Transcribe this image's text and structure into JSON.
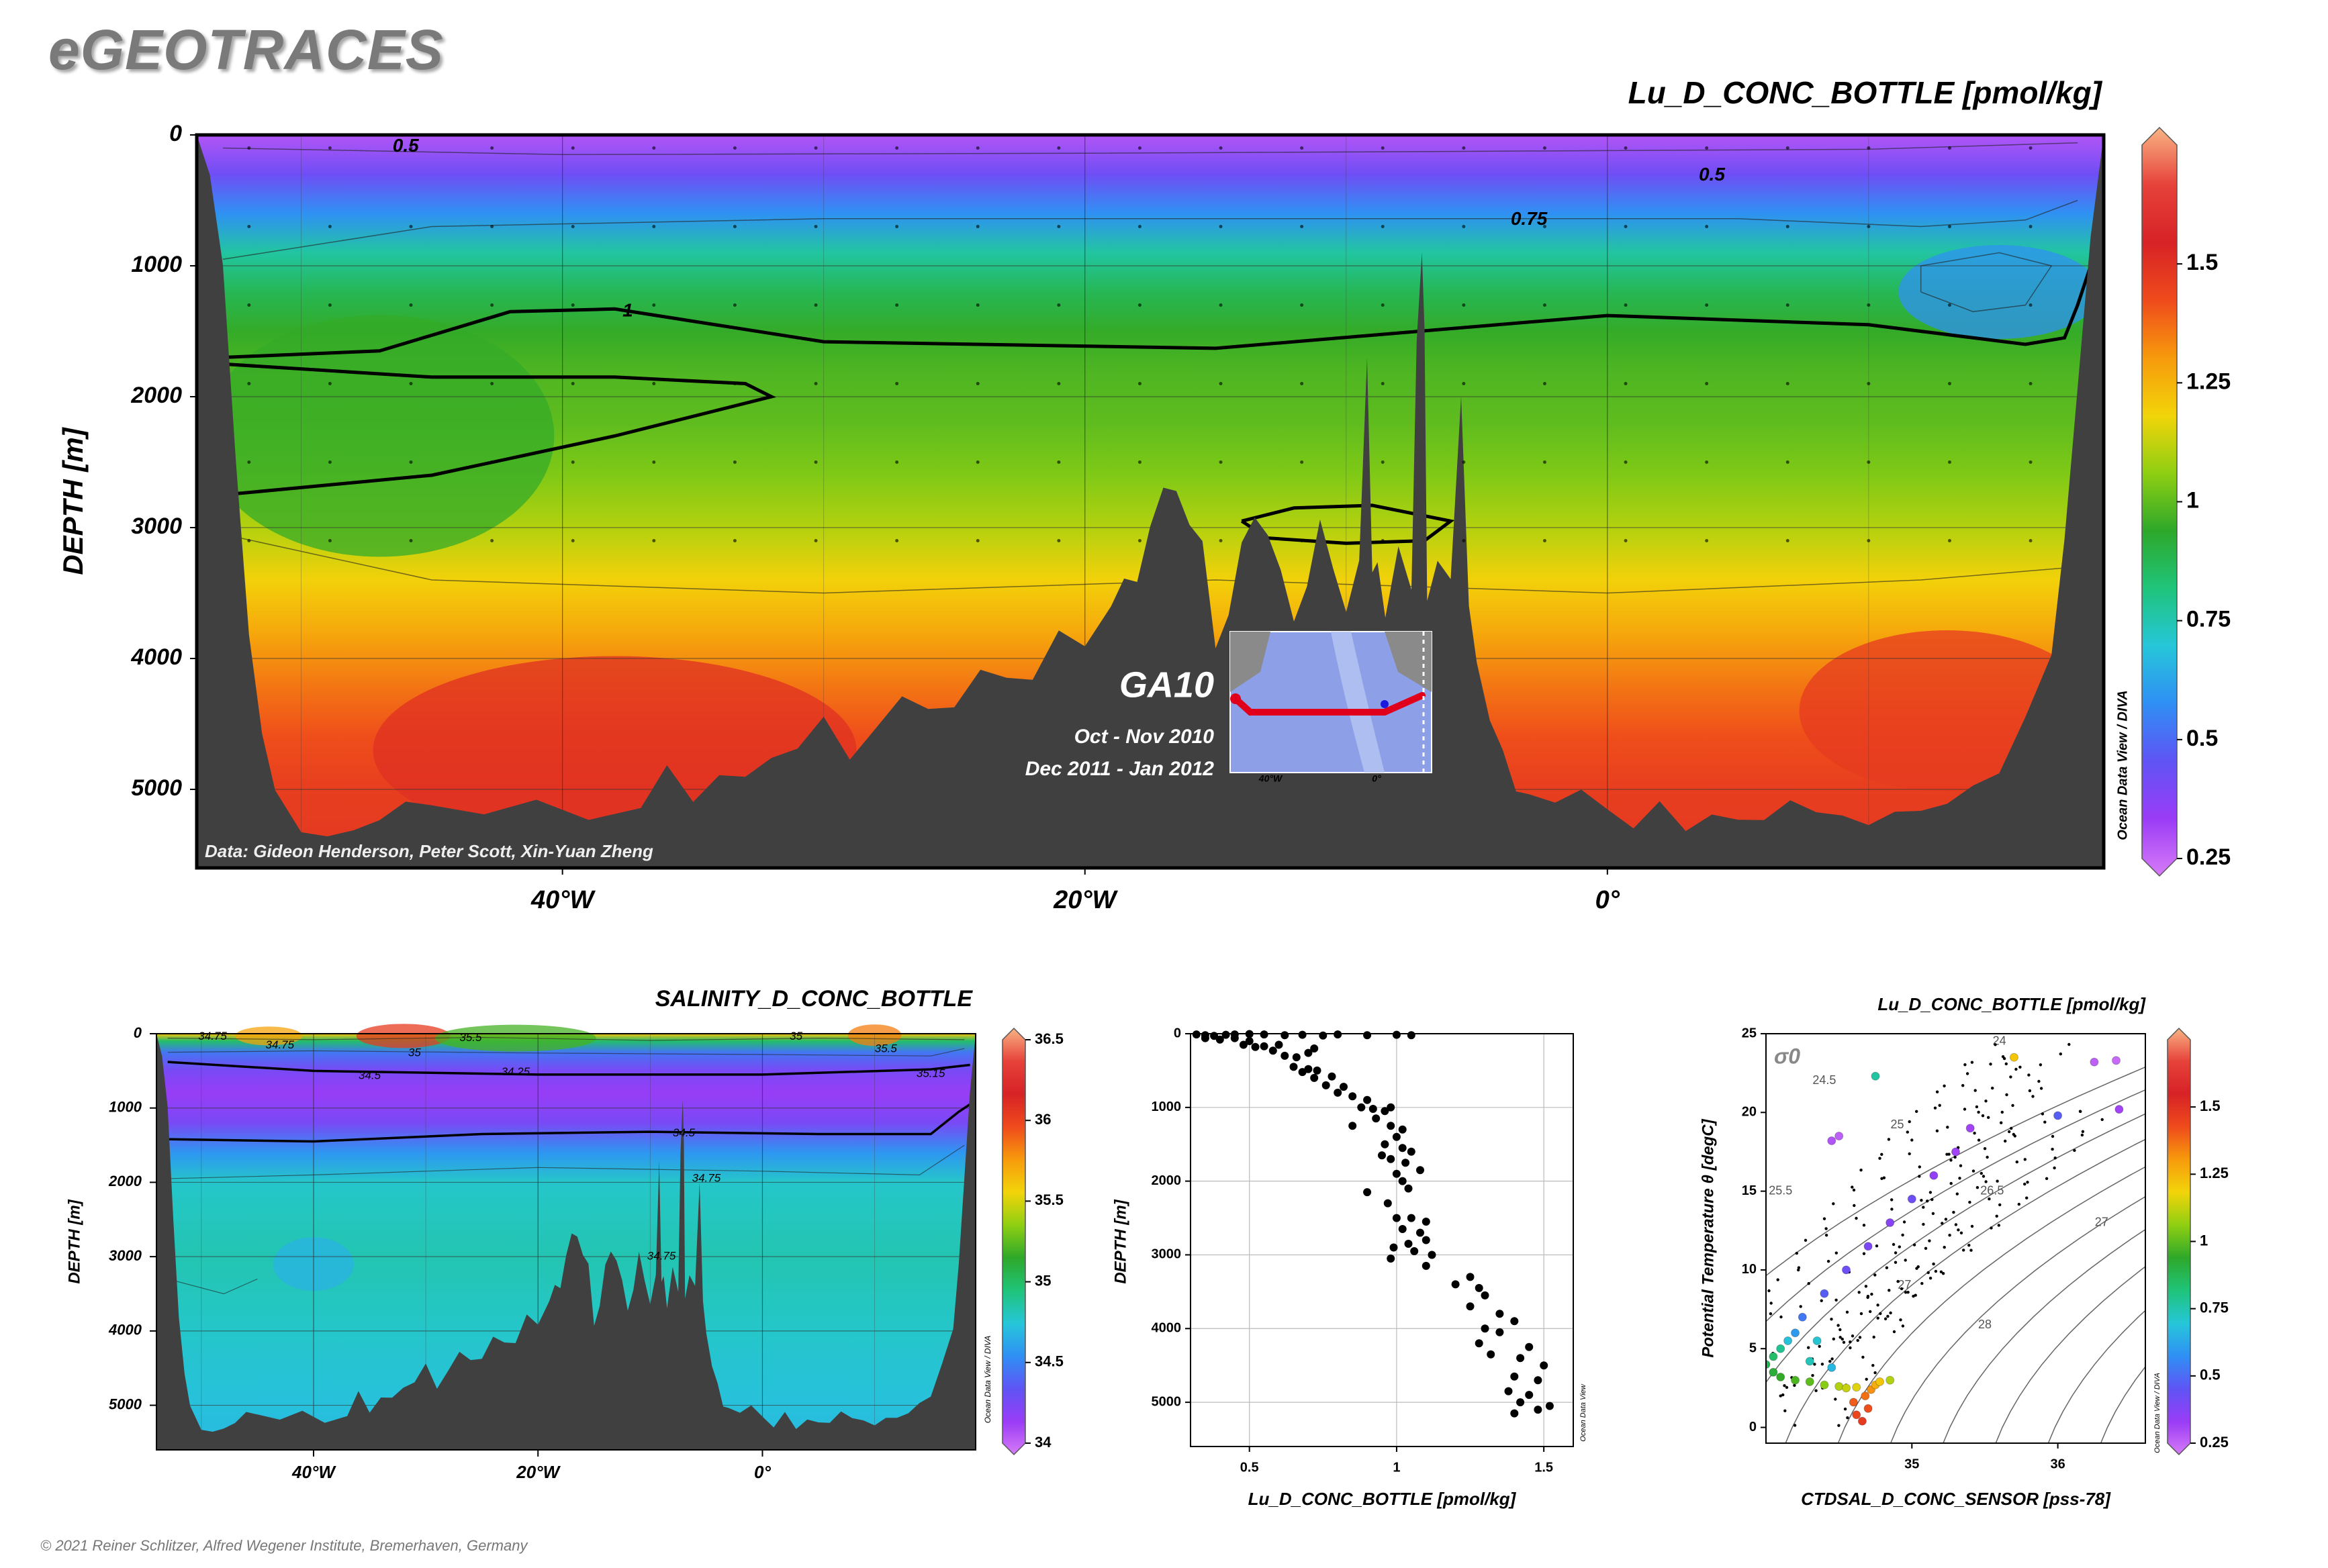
{
  "header": {
    "brand": "eGEOTRACES",
    "copyright": "© 2021 Reiner Schlitzer, Alfred Wegener Institute, Bremerhaven, Germany"
  },
  "main_section": {
    "title": "Lu_D_CONC_BOTTLE [pmol/kg]",
    "y_axis_label": "DEPTH [m]",
    "credit": "Data: Gideon Henderson, Peter Scott, Xin-Yuan Zheng",
    "watermark": "Ocean Data View / DIVA",
    "inset": {
      "cruise": "GA10",
      "period_1": "Oct - Nov 2010",
      "period_2": "Dec 2011 - Jan 2012",
      "map_tick_1": "40°W",
      "map_tick_2": "0°"
    }
  },
  "salinity_section": {
    "title": "SALINITY_D_CONC_BOTTLE",
    "y_axis_label": "DEPTH [m]",
    "watermark": "Ocean Data View / DIVA"
  },
  "profile_plot": {
    "x_axis_label": "Lu_D_CONC_BOTTLE [pmol/kg]",
    "y_axis_label": "DEPTH [m]",
    "watermark": "Ocean Data View"
  },
  "ts_plot": {
    "title": "Lu_D_CONC_BOTTLE [pmol/kg]",
    "x_axis_label": "CTDSAL_D_CONC_SENSOR [pss-78]",
    "y_axis_label": "Potential Temperature θ [degC]",
    "sigma_label": "σ0",
    "watermark": "Ocean Data View / DIVA"
  },
  "colors": {
    "seafloor": "#404040",
    "colormap": [
      "#d77bf7",
      "#9a3cf6",
      "#5f54f5",
      "#2f8ff4",
      "#26c6d9",
      "#1fc47a",
      "#2ea82a",
      "#8fcf12",
      "#f2d40a",
      "#f79a0c",
      "#ef4b1c",
      "#d72226",
      "#e6423a",
      "#f9b384"
    ]
  },
  "chart_data": [
    {
      "type": "heatmap",
      "title": "Lu_D_CONC_BOTTLE [pmol/kg]",
      "ylabel": "DEPTH [m]",
      "x_ticks": [
        "40°W",
        "20°W",
        "0°"
      ],
      "x_tick_values": [
        -40,
        -20,
        0
      ],
      "xlim": [
        -54,
        19
      ],
      "y_ticks": [
        0,
        1000,
        2000,
        3000,
        4000,
        5000
      ],
      "ylim": [
        5600,
        0
      ],
      "colorbar": {
        "ticks": [
          0.25,
          0.5,
          0.75,
          1,
          1.25,
          1.5
        ],
        "range": [
          0.25,
          1.75
        ]
      },
      "contour_labels": [
        "0.5",
        "0.5",
        "0.75",
        "1"
      ],
      "field": {
        "depths": [
          0,
          300,
          600,
          900,
          1200,
          1500,
          1800,
          2200,
          2600,
          3000,
          3400,
          3800,
          4200,
          4600,
          5000,
          5600
        ],
        "values": [
          0.32,
          0.45,
          0.6,
          0.78,
          0.88,
          0.95,
          0.98,
          1.0,
          1.04,
          1.1,
          1.18,
          1.26,
          1.34,
          1.4,
          1.44,
          1.46
        ]
      },
      "seafloor_profile": {
        "lon": [
          -54,
          -53.5,
          -53,
          -52.5,
          -52,
          -51.5,
          -51,
          -50,
          -49,
          -48,
          -47,
          -46,
          -45,
          -43,
          -41,
          -39,
          -37,
          -36,
          -35,
          -34,
          -33,
          -32,
          -31,
          -30,
          -29,
          -28,
          -27,
          -26,
          -25,
          -24,
          -23,
          -22,
          -21,
          -20,
          -19,
          -18.5,
          -18,
          -17.5,
          -17,
          -16.5,
          -16,
          -15.5,
          -15,
          -14.5,
          -14,
          -13.5,
          -13,
          -12.5,
          -12,
          -11.5,
          -11,
          -10.5,
          -10,
          -9.5,
          -9.2,
          -9,
          -8.8,
          -8.5,
          -8,
          -7.5,
          -7.3,
          -7.1,
          -7,
          -6.9,
          -6.5,
          -6,
          -5.6,
          -5.4,
          -5.3,
          -5,
          -4.5,
          -4,
          -3.5,
          -3,
          -2,
          -1,
          0,
          1,
          2,
          3,
          4,
          5,
          6,
          7,
          8,
          9,
          10,
          11,
          12,
          13,
          14,
          15,
          16,
          17,
          17.5,
          18,
          18.5,
          19
        ],
        "depth": [
          0,
          300,
          1000,
          2500,
          3800,
          4600,
          5000,
          5300,
          5400,
          5300,
          5200,
          5150,
          5100,
          5150,
          5150,
          5200,
          5100,
          4900,
          5050,
          4850,
          5000,
          4700,
          4650,
          4550,
          4700,
          4500,
          4400,
          4300,
          4350,
          4200,
          4050,
          4150,
          3900,
          3800,
          3600,
          3500,
          3300,
          3000,
          2800,
          2600,
          3000,
          3200,
          3800,
          3700,
          3200,
          2800,
          3100,
          3400,
          3600,
          3500,
          3000,
          3200,
          3700,
          3300,
          1600,
          3400,
          3300,
          3600,
          3200,
          3500,
          1500,
          950,
          1500,
          3500,
          3300,
          3400,
          1950,
          3100,
          3600,
          4000,
          4500,
          4700,
          5000,
          5050,
          5100,
          5000,
          5150,
          5300,
          5100,
          5300,
          5200,
          5250,
          5200,
          5100,
          5200,
          5150,
          5300,
          5200,
          5100,
          5150,
          5000,
          4800,
          4500,
          4000,
          3000,
          2000,
          800,
          0
        ]
      }
    },
    {
      "type": "heatmap",
      "title": "SALINITY_D_CONC_BOTTLE",
      "ylabel": "DEPTH [m]",
      "x_ticks": [
        "40°W",
        "20°W",
        "0°"
      ],
      "x_tick_values": [
        -40,
        -20,
        0
      ],
      "xlim": [
        -54,
        19
      ],
      "y_ticks": [
        0,
        1000,
        2000,
        3000,
        4000,
        5000
      ],
      "ylim": [
        5600,
        0
      ],
      "colorbar": {
        "ticks": [
          34,
          34.5,
          35,
          35.5,
          36,
          36.5
        ],
        "range": [
          34,
          36.5
        ]
      },
      "contour_labels": [
        "34.75",
        "34.75",
        "35",
        "35.5",
        "34.5",
        "34.25",
        "35",
        "35.5",
        "35.15",
        "34.5",
        "34.75",
        "34.75"
      ],
      "field": {
        "depths": [
          0,
          100,
          250,
          500,
          800,
          1200,
          1600,
          2000,
          3000,
          4000,
          5000,
          5600
        ],
        "values": [
          35.6,
          35.0,
          34.5,
          34.3,
          34.2,
          34.3,
          34.6,
          34.8,
          34.85,
          34.8,
          34.75,
          34.72
        ]
      }
    },
    {
      "type": "scatter",
      "xlabel": "Lu_D_CONC_BOTTLE [pmol/kg]",
      "ylabel": "DEPTH [m]",
      "x_ticks": [
        0.5,
        1,
        1.5
      ],
      "xlim": [
        0.3,
        1.6
      ],
      "y_ticks": [
        0,
        1000,
        2000,
        3000,
        4000,
        5000
      ],
      "ylim": [
        5600,
        0
      ],
      "points": [
        [
          0.32,
          10
        ],
        [
          0.35,
          20
        ],
        [
          0.38,
          30
        ],
        [
          0.42,
          15
        ],
        [
          0.45,
          10
        ],
        [
          0.5,
          5
        ],
        [
          0.55,
          10
        ],
        [
          0.62,
          20
        ],
        [
          0.68,
          15
        ],
        [
          0.75,
          25
        ],
        [
          0.8,
          10
        ],
        [
          0.9,
          20
        ],
        [
          1.0,
          15
        ],
        [
          1.05,
          20
        ],
        [
          0.35,
          60
        ],
        [
          0.4,
          80
        ],
        [
          0.45,
          60
        ],
        [
          0.5,
          100
        ],
        [
          0.48,
          150
        ],
        [
          0.52,
          180
        ],
        [
          0.55,
          170
        ],
        [
          0.6,
          150
        ],
        [
          0.58,
          230
        ],
        [
          0.62,
          300
        ],
        [
          0.66,
          320
        ],
        [
          0.72,
          200
        ],
        [
          0.7,
          260
        ],
        [
          0.65,
          450
        ],
        [
          0.7,
          480
        ],
        [
          0.73,
          500
        ],
        [
          0.68,
          520
        ],
        [
          0.72,
          600
        ],
        [
          0.78,
          580
        ],
        [
          0.76,
          700
        ],
        [
          0.82,
          720
        ],
        [
          0.8,
          800
        ],
        [
          0.85,
          850
        ],
        [
          0.9,
          900
        ],
        [
          0.88,
          1000
        ],
        [
          0.92,
          1020
        ],
        [
          0.96,
          1050
        ],
        [
          0.98,
          1000
        ],
        [
          0.93,
          1150
        ],
        [
          0.98,
          1250
        ],
        [
          1.02,
          1300
        ],
        [
          1.0,
          1400
        ],
        [
          0.96,
          1500
        ],
        [
          1.02,
          1550
        ],
        [
          1.05,
          1600
        ],
        [
          0.98,
          1700
        ],
        [
          1.03,
          1750
        ],
        [
          1.0,
          1900
        ],
        [
          1.02,
          2000
        ],
        [
          1.04,
          2100
        ],
        [
          0.9,
          2150
        ],
        [
          0.97,
          2300
        ],
        [
          1.0,
          2500
        ],
        [
          1.05,
          2500
        ],
        [
          1.1,
          2550
        ],
        [
          1.02,
          2650
        ],
        [
          1.08,
          2700
        ],
        [
          1.1,
          2800
        ],
        [
          1.04,
          2850
        ],
        [
          0.99,
          2900
        ],
        [
          1.06,
          2950
        ],
        [
          1.12,
          3000
        ],
        [
          0.98,
          3050
        ],
        [
          1.1,
          3150
        ],
        [
          1.25,
          3300
        ],
        [
          1.2,
          3400
        ],
        [
          1.28,
          3450
        ],
        [
          1.3,
          3550
        ],
        [
          1.25,
          3700
        ],
        [
          1.35,
          3800
        ],
        [
          1.4,
          3900
        ],
        [
          1.3,
          4000
        ],
        [
          1.35,
          4050
        ],
        [
          1.28,
          4200
        ],
        [
          1.45,
          4250
        ],
        [
          1.32,
          4350
        ],
        [
          1.42,
          4400
        ],
        [
          1.5,
          4500
        ],
        [
          1.4,
          4650
        ],
        [
          1.48,
          4700
        ],
        [
          1.38,
          4850
        ],
        [
          1.45,
          4900
        ],
        [
          1.42,
          5000
        ],
        [
          1.52,
          5050
        ],
        [
          1.48,
          5100
        ],
        [
          1.4,
          5150
        ],
        [
          0.85,
          1250
        ],
        [
          0.95,
          1650
        ],
        [
          1.08,
          1850
        ]
      ]
    },
    {
      "type": "scatter",
      "title": "Lu_D_CONC_BOTTLE [pmol/kg]",
      "xlabel": "CTDSAL_D_CONC_SENSOR [pss-78]",
      "ylabel": "Potential Temperature θ [degC]",
      "x_ticks": [
        35,
        36
      ],
      "xlim": [
        34.0,
        36.6
      ],
      "y_ticks": [
        0,
        5,
        10,
        15,
        20,
        25
      ],
      "ylim": [
        -1,
        25
      ],
      "colorbar": {
        "ticks": [
          0.25,
          0.5,
          0.75,
          1,
          1.25,
          1.5
        ],
        "range": [
          0.25,
          1.75
        ]
      },
      "isopycnal_labels": [
        "24",
        "24.5",
        "25",
        "25.5",
        "26.5",
        "27",
        "27",
        "28"
      ],
      "points": [
        {
          "s": 34.6,
          "t": 1.6,
          "c": 1.38
        },
        {
          "s": 34.68,
          "t": 2.0,
          "c": 1.35
        },
        {
          "s": 34.72,
          "t": 2.4,
          "c": 1.3
        },
        {
          "s": 34.75,
          "t": 2.7,
          "c": 1.25
        },
        {
          "s": 34.62,
          "t": 0.8,
          "c": 1.42
        },
        {
          "s": 34.66,
          "t": 0.4,
          "c": 1.45
        },
        {
          "s": 34.7,
          "t": 1.2,
          "c": 1.4
        },
        {
          "s": 34.78,
          "t": 2.9,
          "c": 1.2
        },
        {
          "s": 34.5,
          "t": 2.6,
          "c": 1.1
        },
        {
          "s": 34.4,
          "t": 2.7,
          "c": 1.05
        },
        {
          "s": 34.3,
          "t": 2.9,
          "c": 1.0
        },
        {
          "s": 34.2,
          "t": 3.0,
          "c": 0.98
        },
        {
          "s": 34.1,
          "t": 3.2,
          "c": 0.95
        },
        {
          "s": 34.55,
          "t": 2.5,
          "c": 1.12
        },
        {
          "s": 34.62,
          "t": 2.55,
          "c": 1.15
        },
        {
          "s": 34.85,
          "t": 3.0,
          "c": 1.1
        },
        {
          "s": 34.05,
          "t": 3.5,
          "c": 0.92
        },
        {
          "s": 34.0,
          "t": 4.0,
          "c": 0.88
        },
        {
          "s": 34.05,
          "t": 4.5,
          "c": 0.85
        },
        {
          "s": 34.1,
          "t": 5.0,
          "c": 0.8
        },
        {
          "s": 34.15,
          "t": 5.5,
          "c": 0.7
        },
        {
          "s": 34.2,
          "t": 6.0,
          "c": 0.62
        },
        {
          "s": 34.25,
          "t": 7.0,
          "c": 0.55
        },
        {
          "s": 34.4,
          "t": 8.5,
          "c": 0.5
        },
        {
          "s": 34.55,
          "t": 10.0,
          "c": 0.45
        },
        {
          "s": 34.7,
          "t": 11.5,
          "c": 0.42
        },
        {
          "s": 34.85,
          "t": 13.0,
          "c": 0.4
        },
        {
          "s": 35.0,
          "t": 14.5,
          "c": 0.45
        },
        {
          "s": 35.15,
          "t": 16.0,
          "c": 0.38
        },
        {
          "s": 35.3,
          "t": 17.5,
          "c": 0.35
        },
        {
          "s": 35.4,
          "t": 19.0,
          "c": 0.35
        },
        {
          "s": 34.45,
          "t": 18.2,
          "c": 0.32
        },
        {
          "s": 34.5,
          "t": 18.5,
          "c": 0.3
        },
        {
          "s": 34.75,
          "t": 22.3,
          "c": 0.78
        },
        {
          "s": 35.7,
          "t": 23.5,
          "c": 1.2
        },
        {
          "s": 36.25,
          "t": 23.2,
          "c": 0.3
        },
        {
          "s": 36.4,
          "t": 23.3,
          "c": 0.28
        },
        {
          "s": 36.0,
          "t": 19.8,
          "c": 0.5
        },
        {
          "s": 36.42,
          "t": 20.2,
          "c": 0.35
        },
        {
          "s": 34.3,
          "t": 4.2,
          "c": 0.75
        },
        {
          "s": 34.45,
          "t": 3.8,
          "c": 0.68
        },
        {
          "s": 34.35,
          "t": 5.5,
          "c": 0.72
        }
      ]
    }
  ]
}
